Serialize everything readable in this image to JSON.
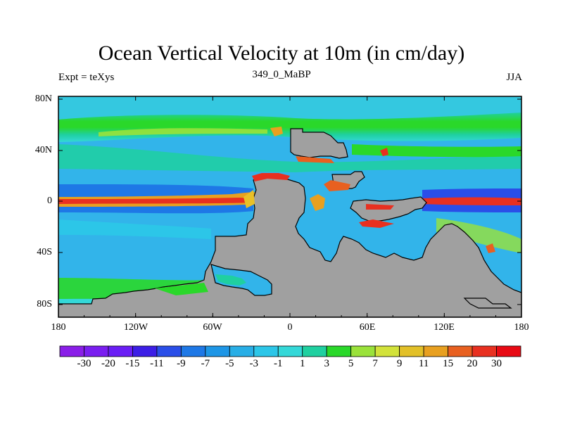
{
  "title": "Ocean Vertical Velocity at 10m (in cm/day)",
  "left_string": "Expt = teXys",
  "center_string": "349_0_MaBP",
  "right_string": "JJA",
  "y_ticks": [
    "80N",
    "40N",
    "0",
    "40S",
    "80S"
  ],
  "x_ticks": [
    "180",
    "120W",
    "60W",
    "0",
    "60E",
    "120E",
    "180"
  ],
  "colorbar": {
    "labels": [
      "-30",
      "-20",
      "-15",
      "-11",
      "-9",
      "-7",
      "-5",
      "-3",
      "-1",
      "1",
      "3",
      "5",
      "7",
      "9",
      "11",
      "15",
      "20",
      "30"
    ],
    "colors": [
      "#8a1ee8",
      "#7a1ef0",
      "#6a1ef5",
      "#3c1ee6",
      "#2a4ee8",
      "#1e78e6",
      "#1e96e6",
      "#28aee6",
      "#2cc6e8",
      "#34d8d8",
      "#1fd0a0",
      "#2ad82a",
      "#9ae23a",
      "#d2e23a",
      "#e2c028",
      "#e8a020",
      "#e86020",
      "#e83020",
      "#e80a14"
    ]
  },
  "colors": {
    "land": "#a0a0a0",
    "ocean_background": "#32b4ea",
    "coast": "#000000"
  }
}
